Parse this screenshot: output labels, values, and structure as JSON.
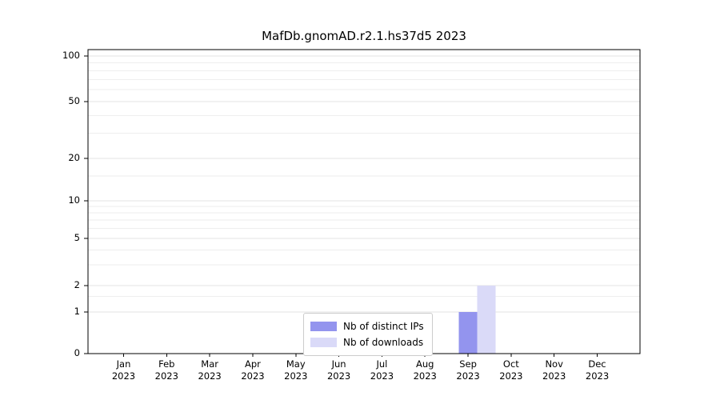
{
  "title": "MafDb.gnomAD.r2.1.hs37d5 2023",
  "chart_data": {
    "type": "bar",
    "categories": [
      "Jan",
      "Feb",
      "Mar",
      "Apr",
      "May",
      "Jun",
      "Jul",
      "Aug",
      "Sep",
      "Oct",
      "Nov",
      "Dec"
    ],
    "x_year_label": "2023",
    "series": [
      {
        "name": "Nb of distinct IPs",
        "color": "#9394ee",
        "values": [
          0,
          0,
          0,
          0,
          0,
          0,
          0,
          0,
          1,
          0,
          0,
          0
        ]
      },
      {
        "name": "Nb of downloads",
        "color": "#dadaf8",
        "values": [
          0,
          0,
          0,
          0,
          0,
          0,
          0,
          0,
          2,
          0,
          0,
          0
        ]
      }
    ],
    "y_ticks": [
      0,
      1,
      2,
      5,
      10,
      20,
      50,
      100
    ],
    "y_minor_gridlines": [
      1.5,
      3,
      4,
      6,
      7,
      8,
      9,
      15,
      30,
      40,
      60,
      70,
      80,
      90
    ],
    "ylim": [
      0,
      100
    ],
    "yscale": "symlog",
    "grid": "horizontal",
    "legend_position": "bottom-center"
  },
  "colors": {
    "grid_major": "#e3e3e3",
    "grid_minor": "#eeeeee",
    "axis": "#000000",
    "background": "#ffffff"
  }
}
